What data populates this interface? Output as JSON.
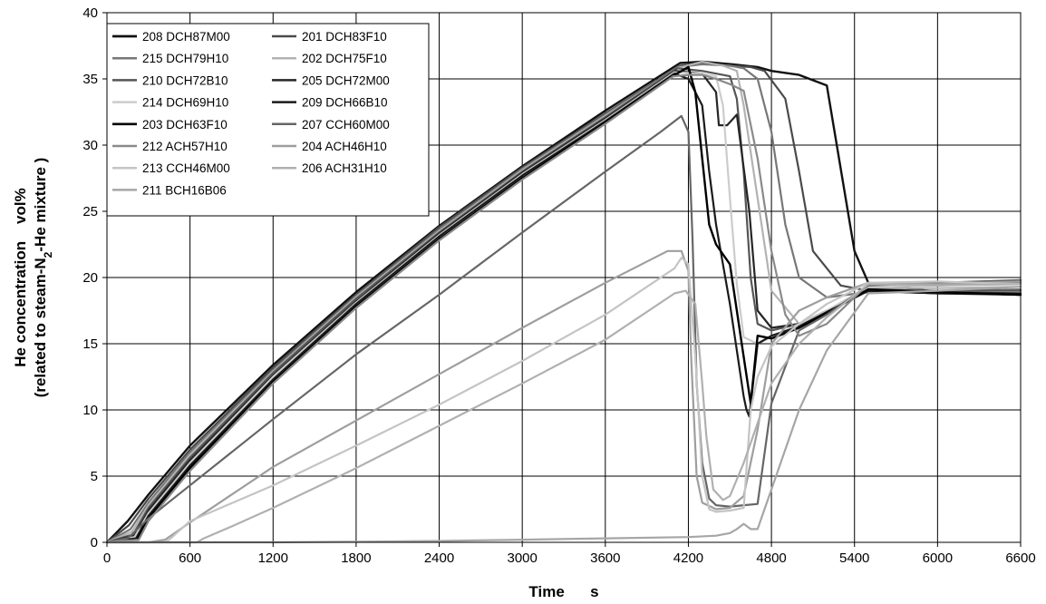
{
  "chart_data": {
    "type": "line",
    "title": "",
    "xlabel": "Time      s",
    "ylabel_line1": "He concentration    vol%",
    "ylabel_line2_parts": [
      "(related to steam-N",
      "2",
      "-He mixture )"
    ],
    "xlim": [
      0,
      6600
    ],
    "ylim": [
      0,
      40
    ],
    "x_ticks": [
      0,
      600,
      1200,
      1800,
      2400,
      3000,
      3600,
      4200,
      4800,
      5400,
      6000,
      6600
    ],
    "y_ticks": [
      0,
      5,
      10,
      15,
      20,
      25,
      30,
      35,
      40
    ],
    "grid": true,
    "legend_position": "top-left",
    "series": [
      {
        "name": "208 DCH87M00",
        "color": "#111111",
        "width": 2.4,
        "x": [
          0,
          150,
          300,
          600,
          1200,
          1800,
          2400,
          3000,
          3600,
          4140,
          4300,
          4520,
          4700,
          4800,
          5000,
          5200,
          5400,
          5500,
          6000,
          6600
        ],
        "y": [
          0,
          1.6,
          3.6,
          7.3,
          13.4,
          18.9,
          23.9,
          28.4,
          32.6,
          36.2,
          36.3,
          36.1,
          35.9,
          35.6,
          35.3,
          34.5,
          22.0,
          19.6,
          18.9,
          18.7
        ]
      },
      {
        "name": "201 DCH83F10",
        "color": "#4a4a4a",
        "width": 2.2,
        "x": [
          0,
          160,
          300,
          600,
          1200,
          1800,
          2400,
          3000,
          3600,
          4140,
          4300,
          4500,
          4650,
          4750,
          4900,
          5000,
          5100,
          5300,
          5500,
          6000,
          6600
        ],
        "y": [
          0,
          1.3,
          3.3,
          7.0,
          13.2,
          18.7,
          23.8,
          28.3,
          32.4,
          36.0,
          36.2,
          36.0,
          35.9,
          35.6,
          33.5,
          28.0,
          22.0,
          19.4,
          19.0,
          18.9,
          18.8
        ]
      },
      {
        "name": "215 DCH79H10",
        "color": "#777777",
        "width": 2.2,
        "x": [
          0,
          170,
          300,
          600,
          1200,
          1800,
          2400,
          3000,
          3600,
          4130,
          4300,
          4500,
          4600,
          4700,
          4800,
          4900,
          5000,
          5200,
          5500,
          6000,
          6600
        ],
        "y": [
          0,
          1.0,
          3.0,
          6.8,
          13.0,
          18.6,
          23.6,
          28.2,
          32.3,
          35.9,
          36.1,
          36.0,
          35.8,
          35.0,
          31.0,
          24.0,
          20.0,
          18.5,
          18.9,
          19.0,
          19.1
        ]
      },
      {
        "name": "202 DCH75F10",
        "color": "#b3b3b3",
        "width": 2.2,
        "x": [
          0,
          180,
          300,
          600,
          1200,
          1800,
          2400,
          3000,
          3600,
          4120,
          4300,
          4450,
          4550,
          4600,
          4700,
          4800,
          5000,
          5200,
          5500,
          6000,
          6600
        ],
        "y": [
          0,
          0.8,
          2.8,
          6.6,
          12.9,
          18.5,
          23.5,
          28.1,
          32.2,
          35.8,
          36.3,
          36.0,
          35.6,
          33.0,
          26.0,
          19.0,
          16.5,
          17.5,
          19.2,
          19.2,
          19.3
        ]
      },
      {
        "name": "210 DCH72B10",
        "color": "#555555",
        "width": 2.2,
        "x": [
          0,
          190,
          300,
          600,
          1200,
          1800,
          2400,
          3000,
          3600,
          4120,
          4300,
          4500,
          4550,
          4600,
          4650,
          4700,
          4800,
          5000,
          5200,
          5500,
          6000,
          6600
        ],
        "y": [
          0,
          0.6,
          2.6,
          6.4,
          12.8,
          18.4,
          23.4,
          28.0,
          32.1,
          35.8,
          35.6,
          35.2,
          33.5,
          28.0,
          20.0,
          16.5,
          16.0,
          16.5,
          17.4,
          19.1,
          19.0,
          19.0
        ]
      },
      {
        "name": "205 DCH72M00",
        "color": "#262626",
        "width": 2.2,
        "x": [
          0,
          200,
          300,
          600,
          1200,
          1800,
          2400,
          3000,
          3600,
          4110,
          4300,
          4400,
          4420,
          4480,
          4550,
          4640,
          4700,
          4800,
          5000,
          5200,
          5500,
          6000,
          6600
        ],
        "y": [
          0,
          0.5,
          2.4,
          6.2,
          12.6,
          18.2,
          23.3,
          27.9,
          32.0,
          35.6,
          35.4,
          34.0,
          31.5,
          31.5,
          32.3,
          25.0,
          17.5,
          16.2,
          16.5,
          17.5,
          19.0,
          18.8,
          18.7
        ]
      },
      {
        "name": "214 DCH69H10",
        "color": "#cccccc",
        "width": 2.2,
        "x": [
          0,
          200,
          300,
          600,
          1200,
          1800,
          2400,
          3000,
          3600,
          4100,
          4300,
          4400,
          4450,
          4500,
          4550,
          4600,
          4700,
          4800,
          5000,
          5200,
          5500,
          6000,
          6600
        ],
        "y": [
          0,
          0.4,
          2.2,
          6.0,
          12.5,
          18.1,
          23.2,
          27.8,
          31.9,
          35.5,
          35.4,
          35.2,
          33.0,
          26.0,
          19.5,
          15.5,
          15.0,
          15.5,
          16.5,
          17.5,
          19.3,
          19.4,
          19.6
        ]
      },
      {
        "name": "209 DCH66B10",
        "color": "#1a1a1a",
        "width": 2.2,
        "x": [
          0,
          210,
          300,
          600,
          1200,
          1800,
          2400,
          3000,
          3600,
          4100,
          4200,
          4300,
          4350,
          4400,
          4450,
          4500,
          4550,
          4600,
          4620,
          4640,
          4700,
          4800,
          5000,
          5200,
          5500,
          6000,
          6600
        ],
        "y": [
          0,
          0.3,
          2.0,
          5.8,
          12.3,
          18.0,
          23.1,
          27.7,
          31.8,
          35.4,
          35.0,
          33.0,
          28.0,
          24.0,
          21.0,
          18.0,
          14.5,
          11.0,
          10.0,
          9.5,
          15.0,
          15.6,
          16.3,
          17.4,
          19.0,
          18.8,
          18.8
        ]
      },
      {
        "name": "203 DCH63F10",
        "color": "#000000",
        "width": 2.4,
        "x": [
          0,
          220,
          300,
          600,
          1200,
          1800,
          2400,
          3000,
          3600,
          4100,
          4200,
          4250,
          4300,
          4350,
          4400,
          4500,
          4600,
          4650,
          4700,
          4800,
          5000,
          5200,
          5500,
          6000,
          6600
        ],
        "y": [
          0,
          0.2,
          1.8,
          5.6,
          12.1,
          17.8,
          22.9,
          27.5,
          31.7,
          35.3,
          35.9,
          34.0,
          29.0,
          24.0,
          22.5,
          21.0,
          14.0,
          10.5,
          15.6,
          15.4,
          16.2,
          17.3,
          19.1,
          18.9,
          18.7
        ]
      },
      {
        "name": "207 CCH60M00",
        "color": "#666666",
        "width": 2.2,
        "x": [
          0,
          150,
          300,
          600,
          1200,
          1800,
          2400,
          3000,
          3600,
          4000,
          4150,
          4200,
          4230,
          4260,
          4300,
          4350,
          4400,
          4500,
          4600,
          4700,
          4800,
          5000,
          5200,
          5500,
          6000,
          6600
        ],
        "y": [
          0,
          0.3,
          1.8,
          4.3,
          9.3,
          14.2,
          18.7,
          23.4,
          28.0,
          31.0,
          32.2,
          31.0,
          23.0,
          12.0,
          6.0,
          3.3,
          2.8,
          2.7,
          2.8,
          2.9,
          10.5,
          16.0,
          17.2,
          19.4,
          19.6,
          19.8
        ]
      },
      {
        "name": "212 ACH57H10",
        "color": "#8a8a8a",
        "width": 2.2,
        "x": [
          0,
          230,
          300,
          600,
          1200,
          1800,
          2400,
          3000,
          3600,
          4090,
          4200,
          4300,
          4400,
          4500,
          4600,
          4700,
          4800,
          4900,
          5000,
          5200,
          5500,
          6000,
          6600
        ],
        "y": [
          0,
          0.2,
          1.6,
          5.4,
          12.0,
          17.7,
          22.8,
          27.4,
          31.6,
          35.2,
          35.3,
          35.3,
          35.0,
          34.6,
          34.1,
          29.0,
          22.0,
          17.2,
          15.6,
          16.5,
          19.5,
          19.4,
          19.6
        ]
      },
      {
        "name": "204 ACH46H10",
        "color": "#9e9e9e",
        "width": 2.2,
        "x": [
          0,
          300,
          420,
          600,
          1200,
          1800,
          2400,
          3000,
          3600,
          4050,
          4150,
          4200,
          4220,
          4260,
          4300,
          4400,
          4500,
          4600,
          4700,
          4800,
          5000,
          5200,
          5500,
          6000,
          6600
        ],
        "y": [
          0,
          0.0,
          0.2,
          1.5,
          5.7,
          9.2,
          12.7,
          16.2,
          19.6,
          22.0,
          22.0,
          20.5,
          14.0,
          5.0,
          3.0,
          2.5,
          2.6,
          3.5,
          8.5,
          15.0,
          17.5,
          18.5,
          19.6,
          19.5,
          19.7
        ]
      },
      {
        "name": "213 CCH46M00",
        "color": "#c4c4c4",
        "width": 2.2,
        "x": [
          0,
          400,
          450,
          600,
          1200,
          1800,
          2400,
          3000,
          3600,
          4100,
          4150,
          4200,
          4250,
          4300,
          4350,
          4400,
          4500,
          4600,
          4650,
          4700,
          4800,
          5000,
          5200,
          5500,
          6000,
          6600
        ],
        "y": [
          0,
          0.0,
          0.2,
          1.6,
          4.3,
          7.3,
          10.4,
          13.7,
          17.2,
          20.7,
          21.5,
          21.0,
          14.0,
          5.0,
          2.5,
          2.3,
          2.4,
          2.6,
          10.0,
          12.5,
          14.8,
          16.5,
          18.0,
          19.6,
          19.7,
          19.5
        ]
      },
      {
        "name": "206 ACH31H10",
        "color": "#b0b0b0",
        "width": 2.2,
        "x": [
          0,
          650,
          700,
          900,
          1200,
          1800,
          2400,
          3000,
          3600,
          4100,
          4180,
          4250,
          4300,
          4330,
          4380,
          4450,
          4500,
          4600,
          4700,
          4800,
          5000,
          5200,
          5500,
          6000,
          6600
        ],
        "y": [
          0,
          0.0,
          0.3,
          1.2,
          2.6,
          5.6,
          8.8,
          12.0,
          15.3,
          18.8,
          19.0,
          18.0,
          12.0,
          8.0,
          4.0,
          3.2,
          3.5,
          6.0,
          9.0,
          12.0,
          15.0,
          17.0,
          19.5,
          19.4,
          19.5
        ]
      },
      {
        "name": "211 BCH16B06",
        "color": "#a6a6a6",
        "width": 2.2,
        "x": [
          0,
          600,
          1200,
          1800,
          2400,
          3000,
          3600,
          4200,
          4400,
          4500,
          4550,
          4600,
          4650,
          4700,
          4800,
          5000,
          5200,
          5500,
          6000,
          6600
        ],
        "y": [
          0,
          0.0,
          0.0,
          0.05,
          0.1,
          0.2,
          0.3,
          0.4,
          0.5,
          0.7,
          1.0,
          1.4,
          1.0,
          1.0,
          4.0,
          10.0,
          14.5,
          18.8,
          19.0,
          19.3
        ]
      }
    ]
  }
}
